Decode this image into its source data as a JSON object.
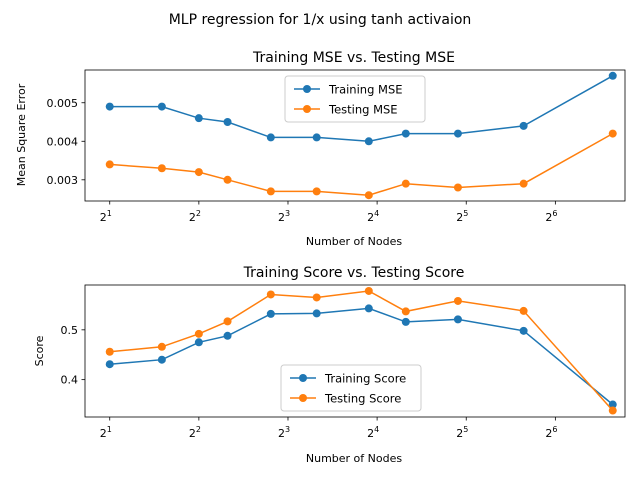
{
  "figure": {
    "suptitle": "MLP regression for 1/x using tanh activaion",
    "colors": {
      "training": "#1f77b4",
      "testing": "#ff7f0e"
    }
  },
  "chart_data": [
    {
      "type": "line",
      "title": "Training MSE vs. Testing MSE",
      "xlabel": "Number of Nodes",
      "ylabel": "Mean Square Error",
      "xscale": "log2",
      "x_tick_labels": [
        {
          "base": "2",
          "exp": "1"
        },
        {
          "base": "2",
          "exp": "2"
        },
        {
          "base": "2",
          "exp": "3"
        },
        {
          "base": "2",
          "exp": "4"
        },
        {
          "base": "2",
          "exp": "5"
        },
        {
          "base": "2",
          "exp": "6"
        }
      ],
      "x_tick_values": [
        2,
        4,
        8,
        16,
        32,
        64
      ],
      "y_tick_labels": [
        "0.003",
        "0.004",
        "0.005"
      ],
      "y_tick_values": [
        0.003,
        0.004,
        0.005
      ],
      "xlim": [
        1.65,
        110
      ],
      "ylim": [
        0.00245,
        0.00585
      ],
      "x": [
        2,
        3,
        4,
        5,
        7,
        10,
        15,
        20,
        30,
        50,
        100
      ],
      "series": [
        {
          "name": "Training MSE",
          "color": "#1f77b4",
          "values": [
            0.0049,
            0.0049,
            0.0046,
            0.0045,
            0.0041,
            0.0041,
            0.004,
            0.0042,
            0.0042,
            0.0044,
            0.0057
          ]
        },
        {
          "name": "Testing MSE",
          "color": "#ff7f0e",
          "values": [
            0.0034,
            0.0033,
            0.0032,
            0.003,
            0.0027,
            0.0027,
            0.0026,
            0.0029,
            0.0028,
            0.0029,
            0.0042
          ]
        }
      ],
      "legend_position": "upper center",
      "grid": false
    },
    {
      "type": "line",
      "title": "Training Score vs. Testing Score",
      "xlabel": "Number of Nodes",
      "ylabel": "Score",
      "xscale": "log2",
      "x_tick_labels": [
        {
          "base": "2",
          "exp": "1"
        },
        {
          "base": "2",
          "exp": "2"
        },
        {
          "base": "2",
          "exp": "3"
        },
        {
          "base": "2",
          "exp": "4"
        },
        {
          "base": "2",
          "exp": "5"
        },
        {
          "base": "2",
          "exp": "6"
        }
      ],
      "x_tick_values": [
        2,
        4,
        8,
        16,
        32,
        64
      ],
      "y_tick_labels": [
        "0.4",
        "0.5"
      ],
      "y_tick_values": [
        0.4,
        0.5
      ],
      "xlim": [
        1.65,
        110
      ],
      "ylim": [
        0.325,
        0.59
      ],
      "x": [
        2,
        3,
        4,
        5,
        7,
        10,
        15,
        20,
        30,
        50,
        100
      ],
      "series": [
        {
          "name": "Training Score",
          "color": "#1f77b4",
          "values": [
            0.431,
            0.44,
            0.475,
            0.488,
            0.532,
            0.533,
            0.543,
            0.516,
            0.521,
            0.498,
            0.35
          ]
        },
        {
          "name": "Testing Score",
          "color": "#ff7f0e",
          "values": [
            0.456,
            0.466,
            0.492,
            0.517,
            0.571,
            0.565,
            0.578,
            0.537,
            0.558,
            0.538,
            0.338
          ]
        }
      ],
      "legend_position": "lower center",
      "grid": false
    }
  ]
}
